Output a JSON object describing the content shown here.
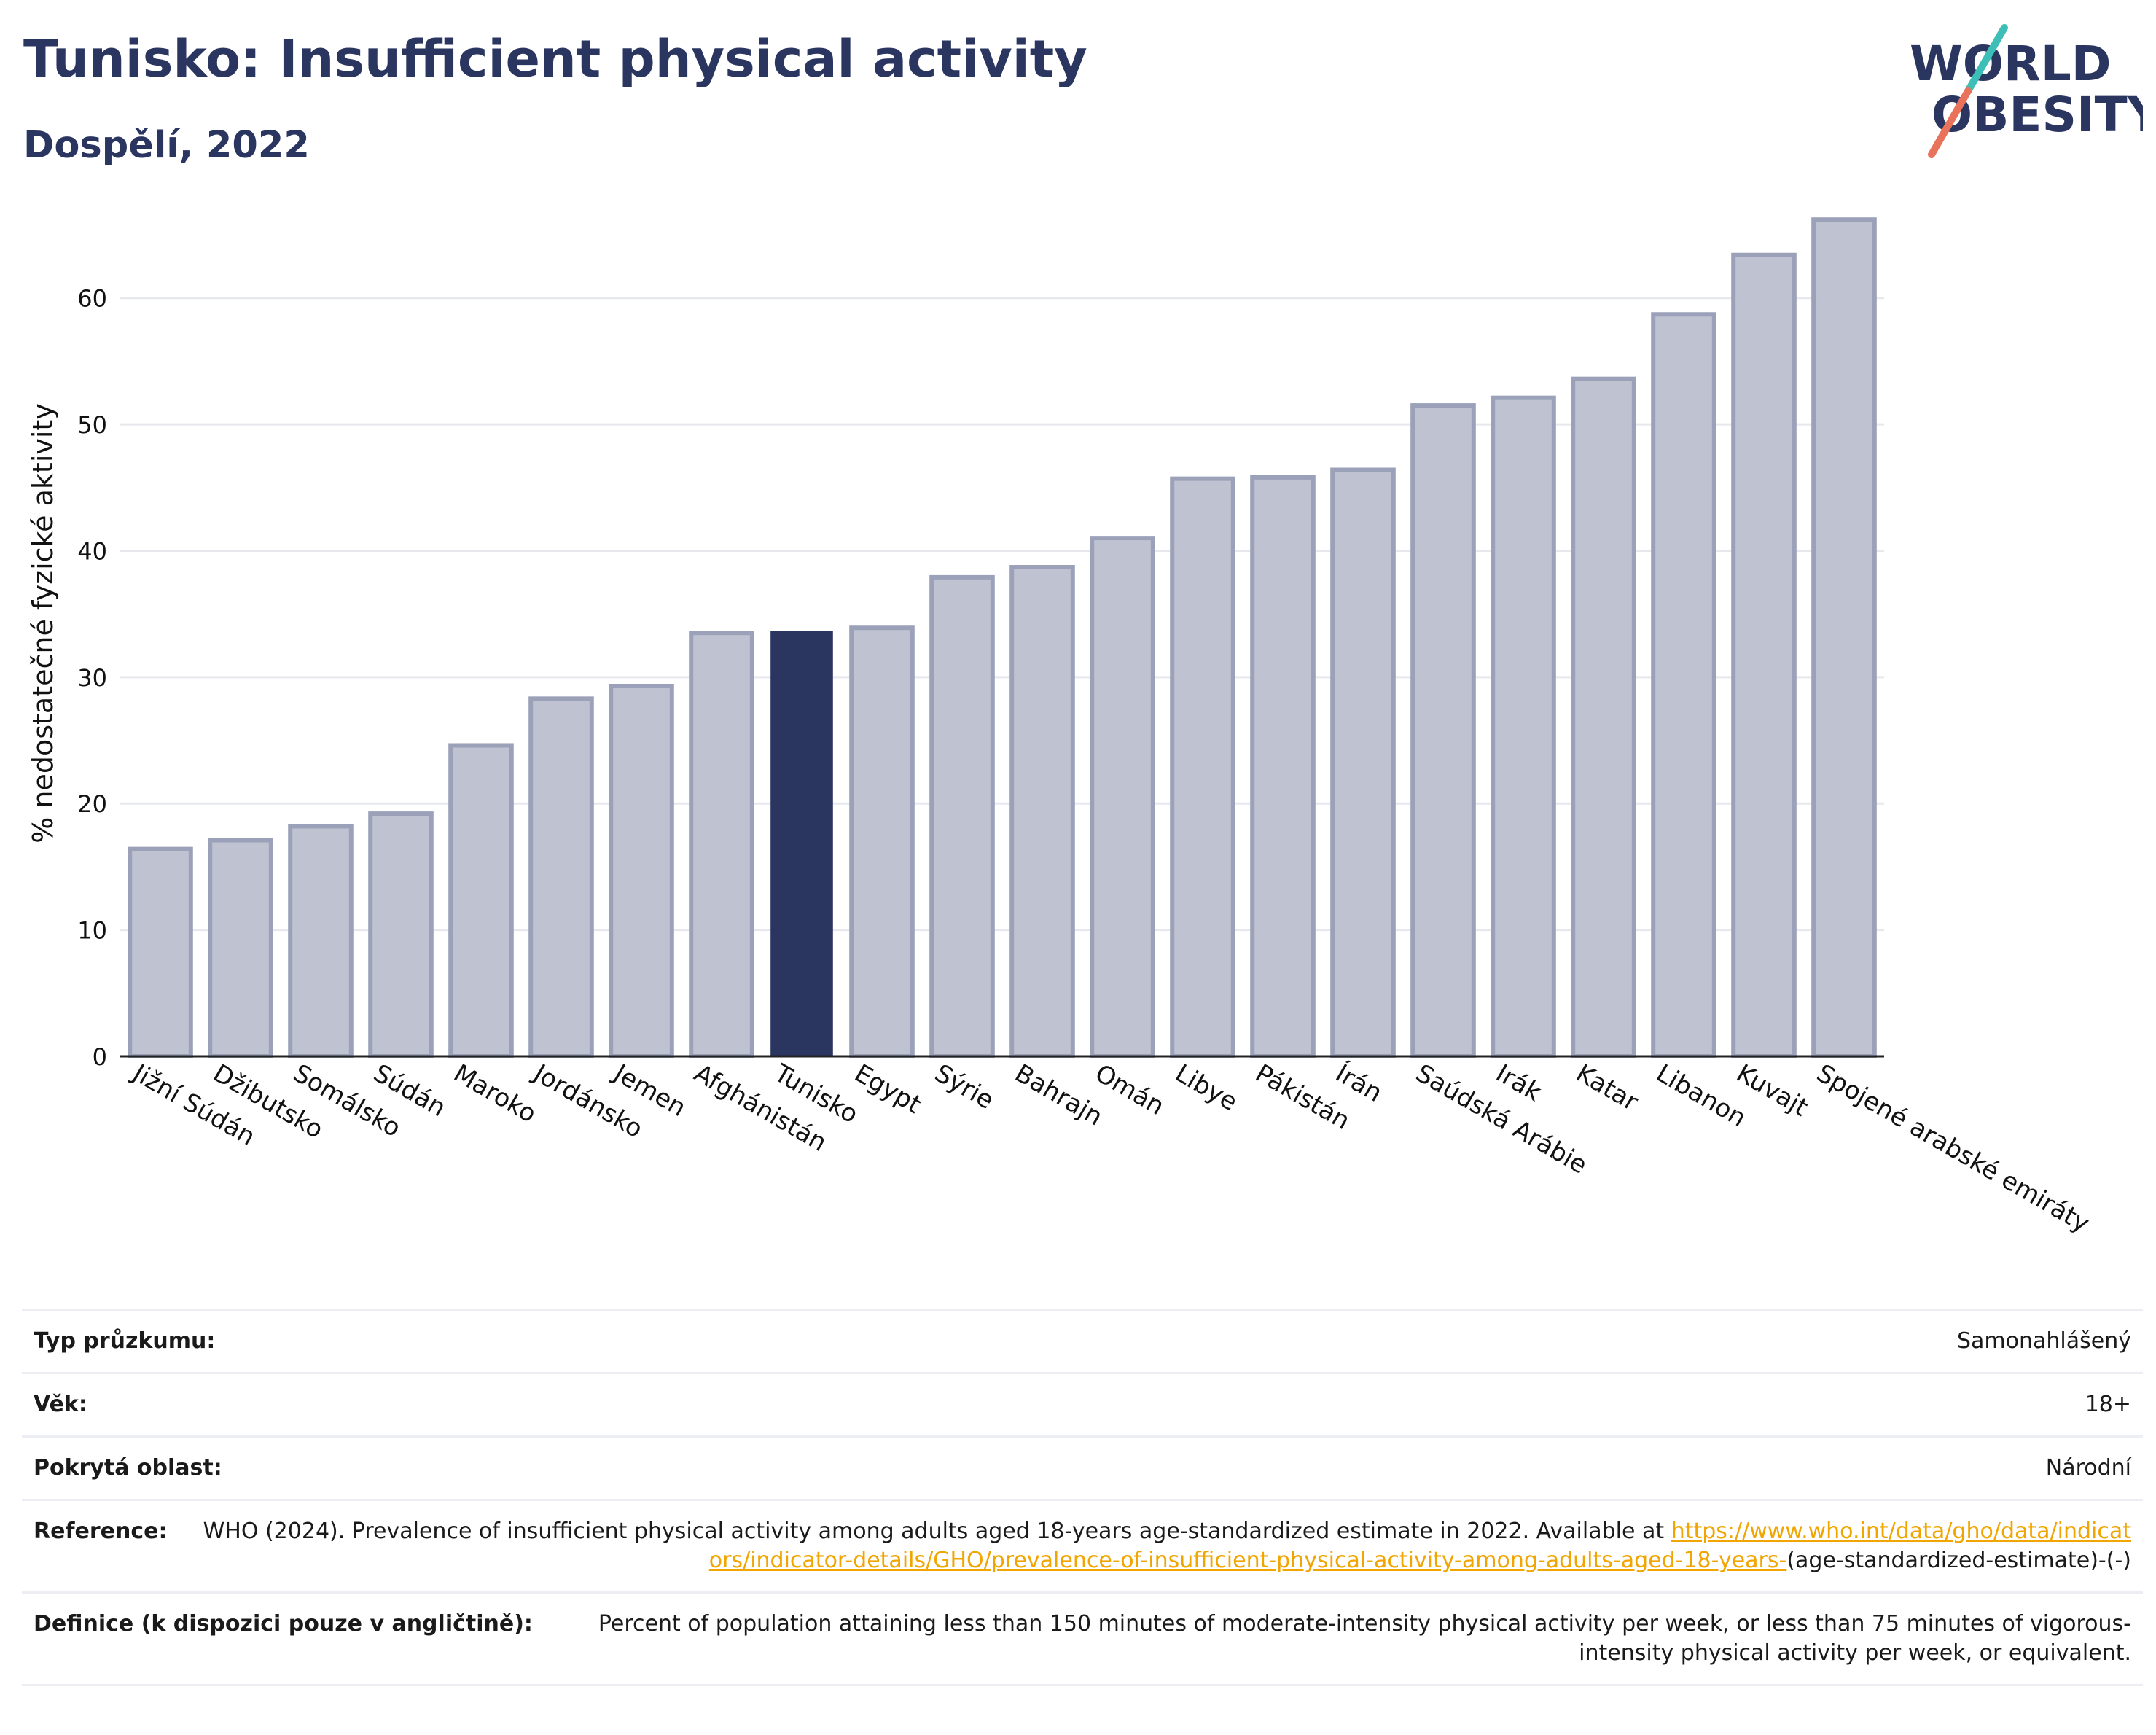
{
  "header": {
    "title": "Tunisko: Insufficient physical activity",
    "subtitle": "Dospělí, 2022"
  },
  "logo": {
    "line1": "WORLD",
    "line2": "OBESITY",
    "colors": {
      "text": "#2a3560",
      "slash_top": "#3dbfb8",
      "slash_bottom": "#e8735a"
    }
  },
  "colors": {
    "bar": "#bfc3d1",
    "bar_stroke": "#9ba1b8",
    "highlight": "#2a3560",
    "grid": "#e6e8ee"
  },
  "chart_data": {
    "type": "bar",
    "ylabel": "% nedostatečné fyzické aktivity",
    "ylim": [
      0,
      68
    ],
    "yticks": [
      0,
      10,
      20,
      30,
      40,
      50,
      60
    ],
    "grid": true,
    "highlight": "Tunisko",
    "categories": [
      "Jižní Súdán",
      "Džibutsko",
      "Somálsko",
      "Súdán",
      "Maroko",
      "Jordánsko",
      "Jemen",
      "Afghánistán",
      "Tunisko",
      "Egypt",
      "Sýrie",
      "Bahrajn",
      "Omán",
      "Libye",
      "Pákistán",
      "Írán",
      "Saúdská Arábie",
      "Irák",
      "Katar",
      "Libanon",
      "Kuvajt",
      "Spojené arabské emiráty"
    ],
    "values": [
      16.4,
      17.1,
      18.2,
      19.2,
      24.6,
      28.3,
      29.3,
      33.5,
      33.6,
      33.9,
      37.9,
      38.7,
      41.0,
      45.7,
      45.8,
      46.4,
      51.5,
      52.1,
      53.6,
      58.7,
      63.4,
      66.2
    ]
  },
  "info": {
    "rows": [
      {
        "label": "Typ průzkumu:",
        "value": "Samonahlášený"
      },
      {
        "label": "Věk:",
        "value": "18+"
      },
      {
        "label": "Pokrytá oblast:",
        "value": "Národní"
      }
    ],
    "reference": {
      "label": "Reference:",
      "text": "WHO (2024). Prevalence of insufficient physical activity among adults aged 18-years age-standardized estimate in 2022. Available at",
      "link": "https://www.who.int/data/gho/data/indicators/indicator-details/GHO/prevalence-of-insufficient-physical-activity-among-adults-aged-18-years-",
      "suffix": "(age-standardized-estimate)-(-)"
    },
    "definition": {
      "label": "Definice (k dispozici pouze v angličtině):",
      "value": "Percent of population attaining less than 150 minutes of moderate-intensity physical activity per week, or less than 75 minutes of vigorous-intensity physical activity per week, or equivalent."
    }
  }
}
